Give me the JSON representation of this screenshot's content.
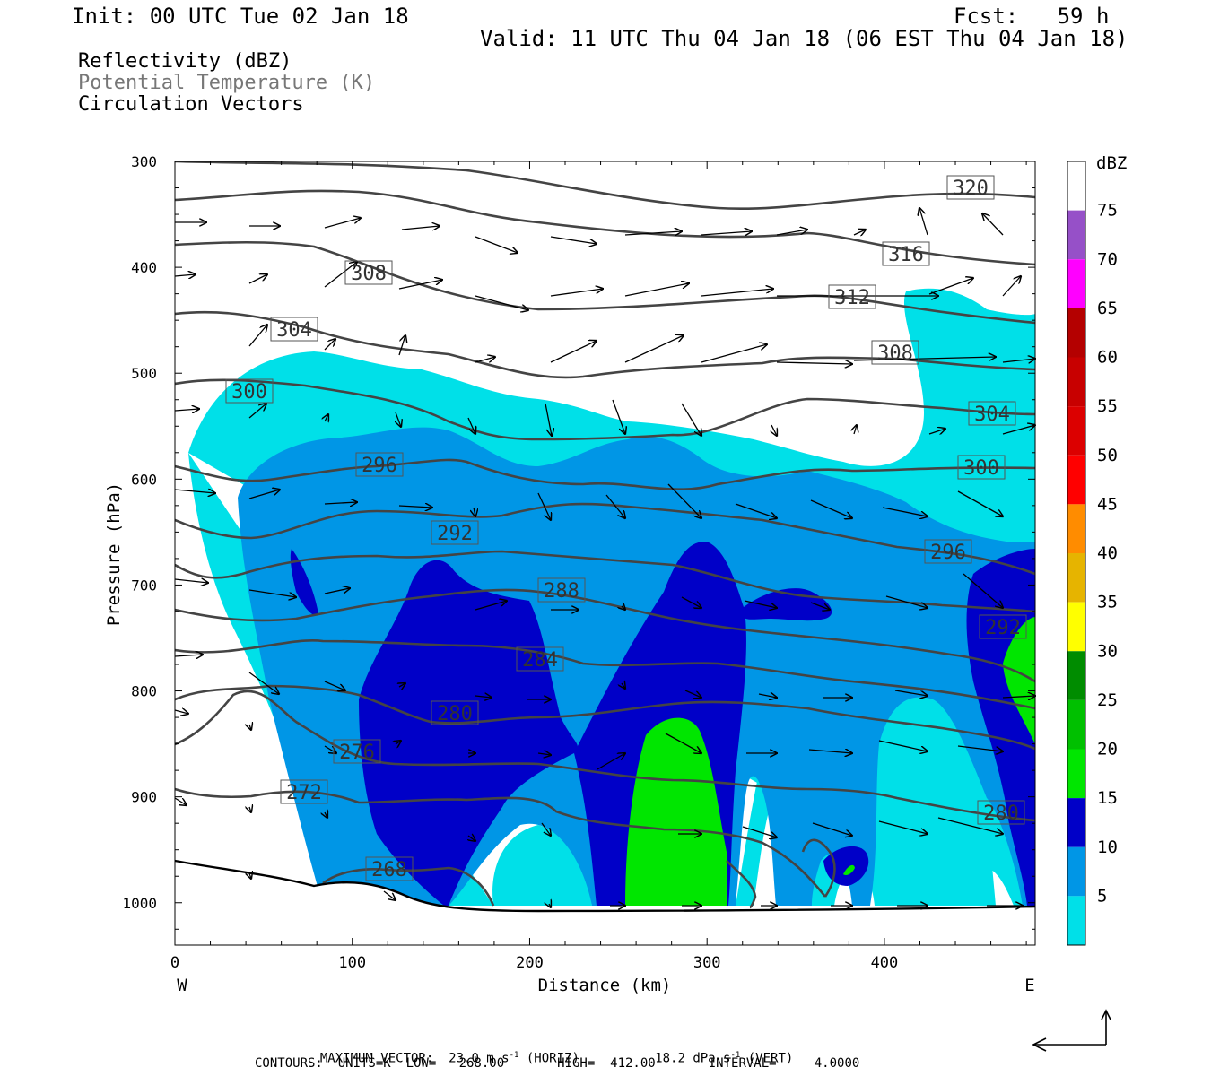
{
  "header": {
    "init": "Init: 00 UTC Tue 02 Jan 18",
    "fcst": "Fcst:   59 h",
    "valid": "Valid: 11 UTC Thu 04 Jan 18 (06 EST Thu 04 Jan 18)",
    "fields": [
      "Reflectivity (dBZ)",
      "Potential Temperature (K)",
      "Circulation Vectors"
    ]
  },
  "colors": {
    "c5": "#00e0e8",
    "c10": "#0096e6",
    "c15": "#0000c8",
    "c20": "#00e600",
    "c25": "#00c000",
    "c30": "#008c00",
    "c35": "#ffff00",
    "c40": "#e6b400",
    "c45": "#ff8c00",
    "c50": "#ff0000",
    "c55": "#dc0000",
    "c60": "#c80000",
    "c65": "#b40000",
    "c70": "#ff00ff",
    "c75": "#9650c8"
  },
  "chart_data": {
    "type": "cross-section",
    "xlabel": "Distance (km)",
    "ylabel": "Pressure (hPa)",
    "xlim": [
      0,
      485
    ],
    "ylim": [
      1040,
      300
    ],
    "x_ticks": [
      "0",
      "100",
      "200",
      "300",
      "400"
    ],
    "y_ticks": [
      "300",
      "400",
      "500",
      "600",
      "700",
      "800",
      "900",
      "1000"
    ],
    "x_ends": [
      "W",
      "E"
    ],
    "colorbar": {
      "title": "dBZ",
      "labels": [
        "75",
        "70",
        "65",
        "60",
        "55",
        "50",
        "45",
        "40",
        "35",
        "30",
        "25",
        "20",
        "15",
        "10",
        "5"
      ]
    },
    "theta_contour_labels": [
      "320",
      "316",
      "312",
      "308",
      "308",
      "304",
      "304",
      "300",
      "300",
      "296",
      "296",
      "292",
      "292",
      "288",
      "284",
      "280",
      "280",
      "276",
      "272",
      "268"
    ],
    "theta_range": [
      268,
      320
    ],
    "footer": {
      "max_vector_label": "MAXIMUM VECTOR:",
      "horiz": "23.0 m s",
      "horiz_unit": " (HORIZ)",
      "vert": "18.2 dPa s",
      "vert_unit": " (VERT)",
      "exp": "-1",
      "contours": "CONTOURS:  UNITS=K  LOW=   268.00       HIGH=  412.00       INTERVAL=     4.0000"
    }
  }
}
